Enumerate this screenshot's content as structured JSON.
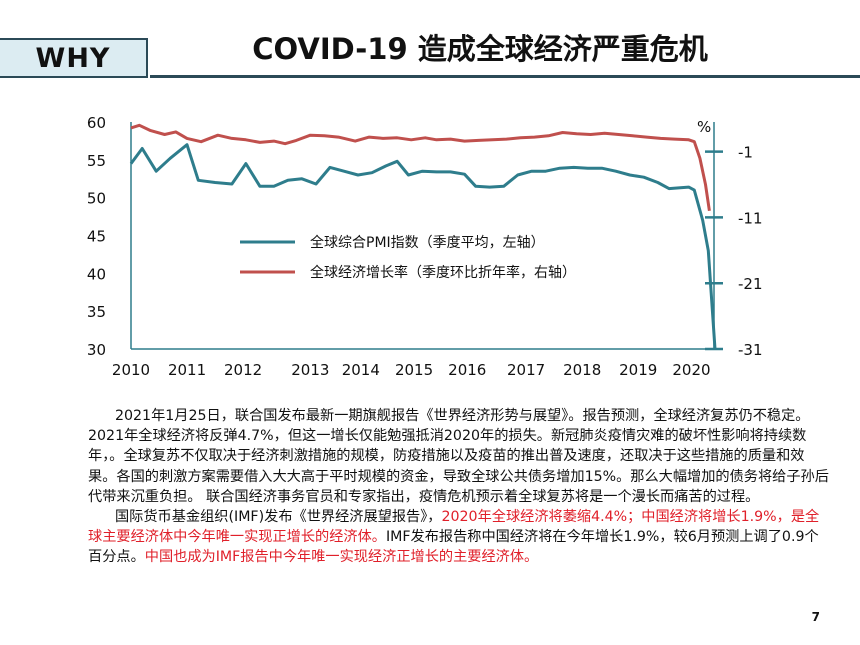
{
  "header": {
    "tag": "WHY",
    "title": "COVID-19  造成全球经济严重危机"
  },
  "chart_data": {
    "type": "line",
    "unit_label": "%",
    "x_ticks": [
      "2010",
      "2011",
      "2012",
      "2013",
      "2014",
      "2015",
      "2016",
      "2017",
      "2018",
      "2019",
      "2020"
    ],
    "left_axis": {
      "ticks": [
        "30",
        "35",
        "40",
        "45",
        "50",
        "55",
        "60"
      ],
      "range": [
        30,
        60
      ]
    },
    "right_axis": {
      "ticks": [
        "-1",
        "-11",
        "-21",
        "-31"
      ],
      "range": [
        -31,
        3.5
      ]
    },
    "series": [
      {
        "name": "全球综合PMI指数（季度平均，左轴）",
        "axis": "left",
        "color": "#2e7d8c",
        "points": [
          [
            2010.0,
            54.5
          ],
          [
            2010.2,
            56.5
          ],
          [
            2010.45,
            53.5
          ],
          [
            2010.7,
            55.2
          ],
          [
            2011.0,
            57.0
          ],
          [
            2011.2,
            52.3
          ],
          [
            2011.5,
            52.0
          ],
          [
            2011.8,
            51.8
          ],
          [
            2012.05,
            54.5
          ],
          [
            2012.3,
            51.5
          ],
          [
            2012.55,
            51.5
          ],
          [
            2012.8,
            52.3
          ],
          [
            2013.05,
            52.5
          ],
          [
            2013.3,
            51.8
          ],
          [
            2013.55,
            54.0
          ],
          [
            2013.8,
            53.5
          ],
          [
            2014.05,
            53.0
          ],
          [
            2014.3,
            53.3
          ],
          [
            2014.55,
            54.2
          ],
          [
            2014.75,
            54.8
          ],
          [
            2014.95,
            53.0
          ],
          [
            2015.2,
            53.5
          ],
          [
            2015.45,
            53.4
          ],
          [
            2015.7,
            53.4
          ],
          [
            2015.95,
            53.1
          ],
          [
            2016.15,
            51.5
          ],
          [
            2016.4,
            51.4
          ],
          [
            2016.65,
            51.5
          ],
          [
            2016.9,
            53.0
          ],
          [
            2017.15,
            53.5
          ],
          [
            2017.4,
            53.5
          ],
          [
            2017.65,
            53.9
          ],
          [
            2017.9,
            54.0
          ],
          [
            2018.15,
            53.9
          ],
          [
            2018.4,
            53.9
          ],
          [
            2018.65,
            53.5
          ],
          [
            2018.9,
            53.0
          ],
          [
            2019.15,
            52.7
          ],
          [
            2019.4,
            52.0
          ],
          [
            2019.6,
            51.2
          ],
          [
            2019.8,
            51.3
          ],
          [
            2019.95,
            51.4
          ],
          [
            2020.05,
            51.0
          ],
          [
            2020.2,
            47.0
          ],
          [
            2020.3,
            43.0
          ],
          [
            2020.42,
            30.0
          ]
        ]
      },
      {
        "name": "全球经济增长率（季度环比折年率，右轴）",
        "axis": "right",
        "color": "#c0504d",
        "points": [
          [
            2010.0,
            2.6
          ],
          [
            2010.15,
            3.0
          ],
          [
            2010.35,
            2.2
          ],
          [
            2010.6,
            1.6
          ],
          [
            2010.8,
            2.0
          ],
          [
            2011.0,
            1.0
          ],
          [
            2011.25,
            0.5
          ],
          [
            2011.55,
            1.5
          ],
          [
            2011.8,
            1.0
          ],
          [
            2012.05,
            0.8
          ],
          [
            2012.3,
            0.4
          ],
          [
            2012.55,
            0.6
          ],
          [
            2012.75,
            0.2
          ],
          [
            2012.95,
            0.7
          ],
          [
            2013.2,
            1.5
          ],
          [
            2013.45,
            1.4
          ],
          [
            2013.7,
            1.2
          ],
          [
            2014.0,
            0.6
          ],
          [
            2014.25,
            1.2
          ],
          [
            2014.5,
            1.0
          ],
          [
            2014.75,
            1.1
          ],
          [
            2015.0,
            0.8
          ],
          [
            2015.25,
            1.1
          ],
          [
            2015.45,
            0.8
          ],
          [
            2015.7,
            0.9
          ],
          [
            2015.95,
            0.6
          ],
          [
            2016.2,
            0.7
          ],
          [
            2016.45,
            0.8
          ],
          [
            2016.7,
            0.9
          ],
          [
            2016.95,
            1.1
          ],
          [
            2017.2,
            1.2
          ],
          [
            2017.45,
            1.4
          ],
          [
            2017.7,
            1.9
          ],
          [
            2017.95,
            1.7
          ],
          [
            2018.2,
            1.6
          ],
          [
            2018.45,
            1.8
          ],
          [
            2018.7,
            1.6
          ],
          [
            2018.95,
            1.4
          ],
          [
            2019.2,
            1.2
          ],
          [
            2019.45,
            1.0
          ],
          [
            2019.7,
            0.9
          ],
          [
            2019.95,
            0.8
          ],
          [
            2020.05,
            0.5
          ],
          [
            2020.15,
            -2.0
          ],
          [
            2020.25,
            -6.0
          ],
          [
            2020.32,
            -10.0
          ]
        ]
      }
    ]
  },
  "body": {
    "para1": "2021年1月25日，联合国发布最新一期旗舰报告《世界经济形势与展望》。报告预测，全球经济复苏仍不稳定。2021年全球经济将反弹4.7%，但这一增长仅能勉强抵消2020年的损失。新冠肺炎疫情灾难的破坏性影响将持续数年，。全球复苏不仅取决于经济刺激措施的规模，防疫措施以及疫苗的推出普及速度，还取决于这些措施的质量和效果。各国的刺激方案需要借入大大高于平时规模的资金，导致全球公共债务增加15%。那么大幅增加的债务将给子孙后代带来沉重负担。 联合国经济事务官员和专家指出，疫情危机预示着全球复苏将是一个漫长而痛苦的过程。",
    "para2_a": "国际货币基金组织(IMF)发布《世界经济展望报告》，",
    "para2_b": "2020年全球经济将萎缩4.4%；中国经济将增长1.9%，是全球主要经济体中今年唯一实现正增长的经济体。",
    "para2_c": "IMF发布报告称中国经济将在今年增长1.9%，较6月预测上调了0.9个百分点。",
    "para2_d": "中国也成为IMF报告中今年唯一实现经济正增长的主要经济体。",
    "accent_red": "#e0202a"
  },
  "footer": {
    "page_number": "7"
  }
}
